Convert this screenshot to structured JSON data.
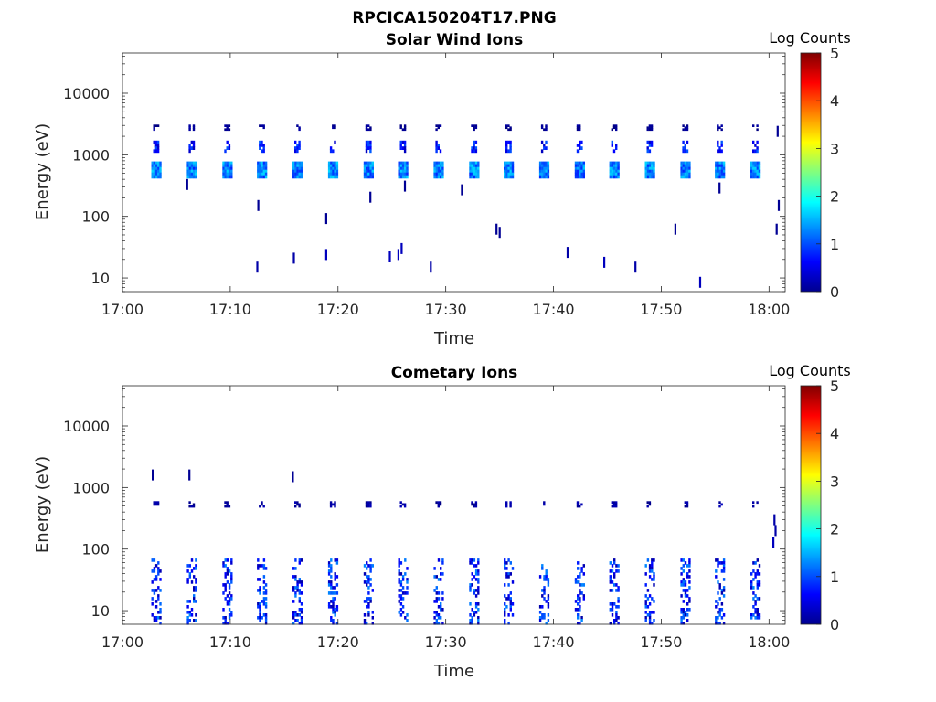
{
  "figure": {
    "title": "RPCICA150204T17.PNG"
  },
  "chart_data": [
    {
      "type": "heatmap",
      "title": "Solar Wind Ions",
      "xlabel": "Time",
      "ylabel": "Energy (eV)",
      "y_scale": "log",
      "ylim": [
        6,
        45000
      ],
      "x_ticks": [
        "17:00",
        "17:10",
        "17:20",
        "17:30",
        "17:40",
        "17:50",
        "18:00"
      ],
      "x_range_minutes": [
        0,
        61.5
      ],
      "y_ticks": [
        {
          "value": 10,
          "label": "10"
        },
        {
          "value": 100,
          "label": "100"
        },
        {
          "value": 1000,
          "label": "1000"
        },
        {
          "value": 10000,
          "label": "10000"
        }
      ],
      "colorbar": {
        "title": "Log Counts",
        "range": [
          0,
          5
        ],
        "ticks": [
          "0",
          "1",
          "2",
          "3",
          "4",
          "5"
        ],
        "colormap": "jet"
      },
      "sweep_times_minutes": [
        3.1,
        6.4,
        9.7,
        12.9,
        16.2,
        19.5,
        22.8,
        26.0,
        29.3,
        32.6,
        35.8,
        39.1,
        42.4,
        45.6,
        48.9,
        52.2,
        55.4,
        58.7
      ],
      "bands": [
        {
          "name": "main",
          "energy_low": 420,
          "energy_high": 780,
          "log_counts_low": 0.8,
          "log_counts_high": 1.7
        },
        {
          "name": "secondary",
          "energy_low": 1100,
          "energy_high": 1700,
          "log_counts_low": 0.3,
          "log_counts_high": 1.1
        },
        {
          "name": "upper",
          "energy_low": 2500,
          "energy_high": 3100,
          "log_counts_low": 0.0,
          "log_counts_high": 0.2
        }
      ],
      "sparse_points": [
        {
          "t": 6.0,
          "e": 330,
          "v": 0.1
        },
        {
          "t": 12.6,
          "e": 150,
          "v": 0.1
        },
        {
          "t": 12.5,
          "e": 15,
          "v": 0.2
        },
        {
          "t": 15.9,
          "e": 21,
          "v": 0.2
        },
        {
          "t": 18.9,
          "e": 24,
          "v": 0.3
        },
        {
          "t": 18.9,
          "e": 92,
          "v": 0.1
        },
        {
          "t": 23.0,
          "e": 205,
          "v": 0.1
        },
        {
          "t": 24.8,
          "e": 22,
          "v": 0.3
        },
        {
          "t": 25.6,
          "e": 24,
          "v": 0.3
        },
        {
          "t": 25.9,
          "e": 30,
          "v": 0.3
        },
        {
          "t": 26.2,
          "e": 310,
          "v": 0.1
        },
        {
          "t": 28.6,
          "e": 15,
          "v": 0.2
        },
        {
          "t": 31.5,
          "e": 270,
          "v": 0.1
        },
        {
          "t": 34.7,
          "e": 62,
          "v": 0.1
        },
        {
          "t": 35.0,
          "e": 55,
          "v": 0.1
        },
        {
          "t": 41.3,
          "e": 26,
          "v": 0.2
        },
        {
          "t": 44.7,
          "e": 18,
          "v": 0.3
        },
        {
          "t": 47.6,
          "e": 15,
          "v": 0.2
        },
        {
          "t": 51.3,
          "e": 62,
          "v": 0.1
        },
        {
          "t": 53.6,
          "e": 8.5,
          "v": 0.3
        },
        {
          "t": 55.4,
          "e": 290,
          "v": 0.1
        },
        {
          "t": 60.8,
          "e": 2400,
          "v": 0.1
        },
        {
          "t": 60.9,
          "e": 150,
          "v": 0.1
        },
        {
          "t": 60.7,
          "e": 62,
          "v": 0.1
        }
      ]
    },
    {
      "type": "heatmap",
      "title": "Cometary Ions",
      "xlabel": "Time",
      "ylabel": "Energy (eV)",
      "y_scale": "log",
      "ylim": [
        6,
        45000
      ],
      "x_ticks": [
        "17:00",
        "17:10",
        "17:20",
        "17:30",
        "17:40",
        "17:50",
        "18:00"
      ],
      "x_range_minutes": [
        0,
        61.5
      ],
      "y_ticks": [
        {
          "value": 10,
          "label": "10"
        },
        {
          "value": 100,
          "label": "100"
        },
        {
          "value": 1000,
          "label": "1000"
        },
        {
          "value": 10000,
          "label": "10000"
        }
      ],
      "colorbar": {
        "title": "Log Counts",
        "range": [
          0,
          5
        ],
        "ticks": [
          "0",
          "1",
          "2",
          "3",
          "4",
          "5"
        ],
        "colormap": "jet"
      },
      "sweep_times_minutes": [
        3.1,
        6.4,
        9.7,
        12.9,
        16.2,
        19.5,
        22.8,
        26.0,
        29.3,
        32.6,
        35.8,
        39.1,
        42.4,
        45.6,
        48.9,
        52.2,
        55.4,
        58.7
      ],
      "bands": [
        {
          "name": "low_energy",
          "energy_low": 6,
          "energy_high": 70,
          "log_counts_low": 0.2,
          "log_counts_high": 1.3
        },
        {
          "name": "mid",
          "energy_low": 480,
          "energy_high": 600,
          "log_counts_low": 0.0,
          "log_counts_high": 0.3
        }
      ],
      "sparse_points": [
        {
          "t": 2.8,
          "e": 1600,
          "v": 0.1
        },
        {
          "t": 6.2,
          "e": 1600,
          "v": 0.1
        },
        {
          "t": 15.8,
          "e": 1500,
          "v": 0.1
        },
        {
          "t": 60.5,
          "e": 300,
          "v": 0.2
        },
        {
          "t": 60.6,
          "e": 200,
          "v": 0.2
        },
        {
          "t": 60.4,
          "e": 130,
          "v": 0.3
        }
      ]
    }
  ]
}
